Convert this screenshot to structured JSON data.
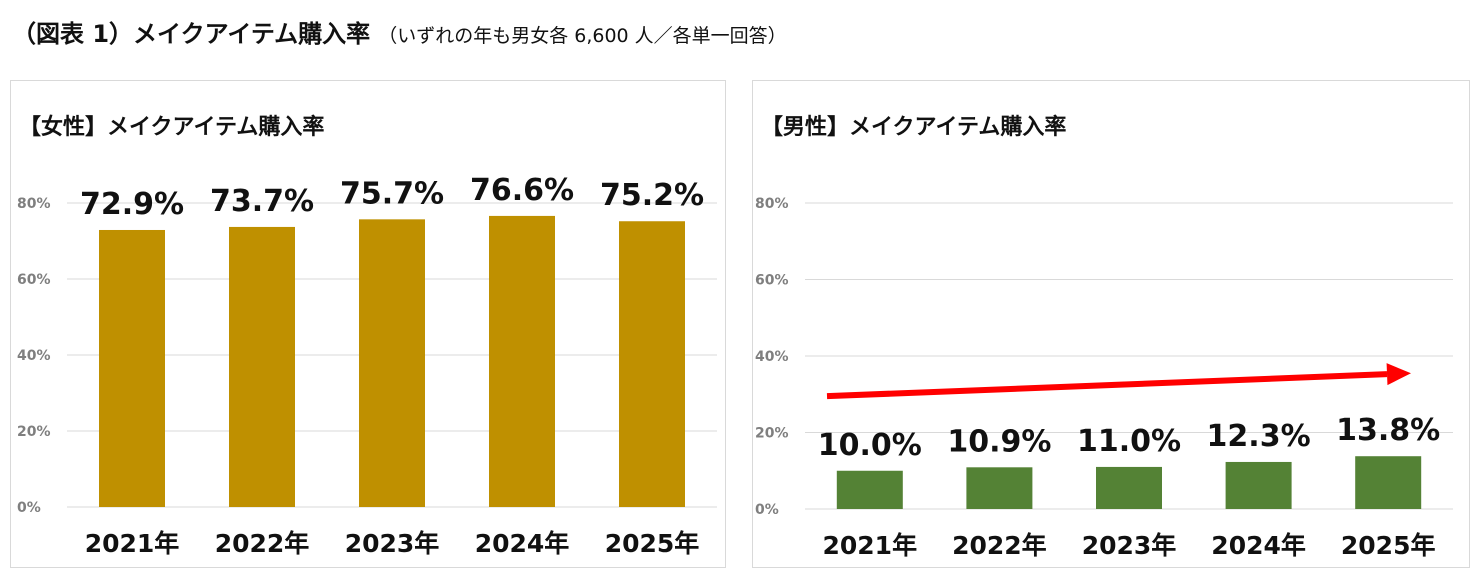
{
  "figure": {
    "title": "（図表 1）メイクアイテム購入率",
    "subtitle": "（いずれの年も男女各 6,600 人／各単一回答）"
  },
  "chart_data": [
    {
      "type": "bar",
      "title": "【女性】メイクアイテム購入率",
      "categories": [
        "2021年",
        "2022年",
        "2023年",
        "2024年",
        "2025年"
      ],
      "values": [
        72.9,
        73.7,
        75.7,
        76.6,
        75.2
      ],
      "data_labels": [
        "72.9%",
        "73.7%",
        "75.7%",
        "76.6%",
        "75.2%"
      ],
      "ylim": [
        0,
        80
      ],
      "yticks": [
        0,
        20,
        40,
        60,
        80
      ],
      "ytick_labels": [
        "0%",
        "20%",
        "40%",
        "60%",
        "80%"
      ],
      "grid": true,
      "color": "#bf9000"
    },
    {
      "type": "bar",
      "title": "【男性】メイクアイテム購入率",
      "categories": [
        "2021年",
        "2022年",
        "2023年",
        "2024年",
        "2025年"
      ],
      "values": [
        10.0,
        10.9,
        11.0,
        12.3,
        13.8
      ],
      "data_labels": [
        "10.0%",
        "10.9%",
        "11.0%",
        "12.3%",
        "13.8%"
      ],
      "ylim": [
        0,
        80
      ],
      "yticks": [
        0,
        20,
        40,
        60,
        80
      ],
      "ytick_labels": [
        "0%",
        "20%",
        "40%",
        "60%",
        "80%"
      ],
      "grid": true,
      "color": "#548235",
      "trend_arrow": {
        "from_value": 29.5,
        "to_value": 35.5,
        "color": "#ff0000"
      }
    }
  ]
}
